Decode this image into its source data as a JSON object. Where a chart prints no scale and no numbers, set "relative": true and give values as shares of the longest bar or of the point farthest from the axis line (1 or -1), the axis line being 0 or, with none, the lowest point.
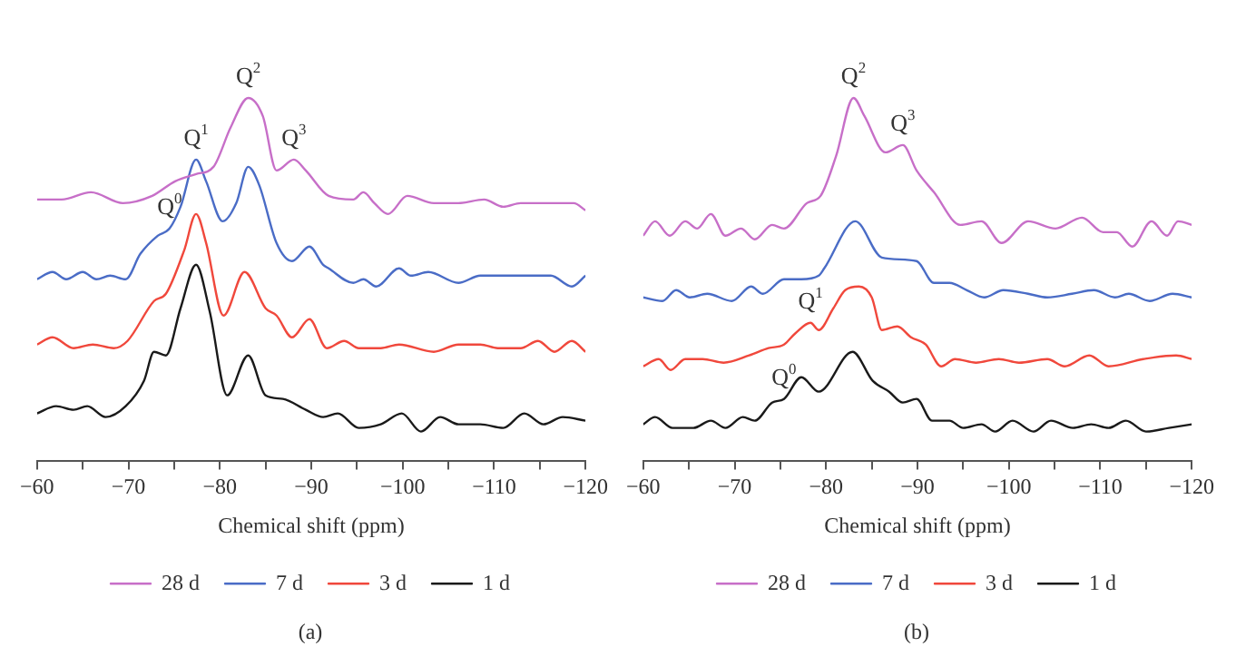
{
  "chart_data": [
    {
      "type": "line",
      "subtitle": "(a)",
      "xlabel": "Chemical shift (ppm)",
      "relative": true,
      "legend": "bottom",
      "grid": false,
      "tick_labels": "x",
      "marker": "none",
      "line_style": "solid",
      "xlim": [
        -60,
        -120
      ],
      "xticks": [
        {
          "value": -60,
          "label": "−60"
        },
        {
          "value": -65,
          "label": null
        },
        {
          "value": -70,
          "label": "−70"
        },
        {
          "value": -75,
          "label": null
        },
        {
          "value": -80,
          "label": "−80"
        },
        {
          "value": -85,
          "label": null
        },
        {
          "value": -90,
          "label": "−90"
        },
        {
          "value": -95,
          "label": null
        },
        {
          "value": -100,
          "label": "−100"
        },
        {
          "value": -105,
          "label": null
        },
        {
          "value": -110,
          "label": "−110"
        },
        {
          "value": -115,
          "label": null
        },
        {
          "value": -120,
          "label": "−120"
        }
      ],
      "annotations": [
        {
          "text": "Q$^{0}$",
          "x": -74.5,
          "y": 0.64
        },
        {
          "text": "Q$^{1}$",
          "x": -77.4,
          "y": 0.83
        },
        {
          "text": "Q$^{2}$",
          "x": -83.1,
          "y": 1.0
        },
        {
          "text": "Q$^{3}$",
          "x": -88.1,
          "y": 0.83
        }
      ],
      "series": [
        {
          "name": "28 d",
          "color": "#c76fc8",
          "x": [
            -60,
            -62.7,
            -65.9,
            -69.4,
            -72.6,
            -75.1,
            -77.4,
            -79.3,
            -81.2,
            -83.1,
            -84.7,
            -86.2,
            -88.1,
            -89.4,
            -91.9,
            -94.6,
            -95.7,
            -96.9,
            -98.4,
            -100.5,
            -103.4,
            -106.1,
            -108.9,
            -111,
            -112.9,
            -116.2,
            -118.7,
            -120
          ],
          "values": [
            0.72,
            0.72,
            0.74,
            0.71,
            0.73,
            0.77,
            0.79,
            0.81,
            0.92,
            1.0,
            0.95,
            0.8,
            0.83,
            0.8,
            0.73,
            0.72,
            0.74,
            0.71,
            0.68,
            0.73,
            0.71,
            0.71,
            0.72,
            0.7,
            0.71,
            0.71,
            0.71,
            0.69
          ]
        },
        {
          "name": "7 d",
          "color": "#4a6cc6",
          "x": [
            -60,
            -61.7,
            -63.2,
            -65,
            -66.5,
            -68,
            -69.7,
            -71.3,
            -73.2,
            -74.5,
            -75.7,
            -77.4,
            -78.5,
            -80.3,
            -81.8,
            -83.1,
            -84.3,
            -86.2,
            -87.9,
            -89.8,
            -91.3,
            -91.9,
            -94.6,
            -95.7,
            -97.1,
            -99.6,
            -100.9,
            -102.8,
            -106.1,
            -108.5,
            -110.4,
            -113.7,
            -116.2,
            -118.5,
            -120
          ],
          "values": [
            0.5,
            0.52,
            0.5,
            0.52,
            0.5,
            0.51,
            0.5,
            0.57,
            0.62,
            0.64,
            0.7,
            0.83,
            0.77,
            0.66,
            0.71,
            0.81,
            0.76,
            0.6,
            0.55,
            0.59,
            0.54,
            0.53,
            0.49,
            0.5,
            0.48,
            0.53,
            0.51,
            0.52,
            0.49,
            0.51,
            0.51,
            0.51,
            0.51,
            0.48,
            0.51
          ]
        },
        {
          "name": "3 d",
          "color": "#f0483c",
          "x": [
            -60,
            -61.7,
            -64,
            -66.1,
            -68.4,
            -69.9,
            -72.8,
            -74.1,
            -76.1,
            -77.4,
            -78.5,
            -80.4,
            -82.7,
            -85,
            -86.2,
            -87.9,
            -89.8,
            -91.7,
            -93.6,
            -95.2,
            -97.6,
            -99.6,
            -103.4,
            -106.1,
            -108.5,
            -110.4,
            -112.9,
            -114.8,
            -116.6,
            -118.5,
            -120
          ],
          "values": [
            0.32,
            0.34,
            0.31,
            0.32,
            0.31,
            0.33,
            0.44,
            0.46,
            0.58,
            0.68,
            0.6,
            0.4,
            0.52,
            0.42,
            0.4,
            0.34,
            0.39,
            0.31,
            0.33,
            0.31,
            0.31,
            0.32,
            0.3,
            0.32,
            0.32,
            0.31,
            0.31,
            0.33,
            0.3,
            0.33,
            0.3
          ]
        },
        {
          "name": "1 d",
          "color": "#1a1a1a",
          "x": [
            -60,
            -62.1,
            -64,
            -65.5,
            -67.5,
            -69.7,
            -71.7,
            -72.8,
            -74.1,
            -75.7,
            -77.4,
            -78.9,
            -80.8,
            -83.1,
            -85,
            -86.9,
            -89.4,
            -91.3,
            -92.9,
            -95.2,
            -97.6,
            -99.9,
            -102,
            -104.1,
            -106.1,
            -108.5,
            -111,
            -113.3,
            -115.4,
            -117.5,
            -120
          ],
          "values": [
            0.13,
            0.15,
            0.14,
            0.15,
            0.12,
            0.15,
            0.22,
            0.3,
            0.29,
            0.42,
            0.54,
            0.41,
            0.18,
            0.29,
            0.18,
            0.17,
            0.14,
            0.12,
            0.13,
            0.09,
            0.1,
            0.13,
            0.08,
            0.12,
            0.1,
            0.1,
            0.09,
            0.13,
            0.1,
            0.12,
            0.11
          ]
        }
      ]
    },
    {
      "type": "line",
      "subtitle": "(b)",
      "xlabel": "Chemical shift (ppm)",
      "relative": true,
      "legend": "bottom",
      "grid": false,
      "tick_labels": "x",
      "marker": "none",
      "line_style": "solid",
      "xlim": [
        -60,
        -120
      ],
      "xticks": [
        {
          "value": -60,
          "label": "−60"
        },
        {
          "value": -65,
          "label": null
        },
        {
          "value": -70,
          "label": "−70"
        },
        {
          "value": -75,
          "label": null
        },
        {
          "value": -80,
          "label": "−80"
        },
        {
          "value": -85,
          "label": null
        },
        {
          "value": -90,
          "label": "−90"
        },
        {
          "value": -95,
          "label": null
        },
        {
          "value": -100,
          "label": "−100"
        },
        {
          "value": -105,
          "label": null
        },
        {
          "value": -110,
          "label": "−110"
        },
        {
          "value": -115,
          "label": null
        },
        {
          "value": -120,
          "label": "−120"
        }
      ],
      "annotations": [
        {
          "text": "Q$^{0}$",
          "x": -75.4,
          "y": 0.17
        },
        {
          "text": "Q$^{1}$",
          "x": -78.3,
          "y": 0.38
        },
        {
          "text": "Q$^{2}$",
          "x": -83,
          "y": 1.0
        },
        {
          "text": "Q$^{3}$",
          "x": -88.4,
          "y": 0.87
        }
      ],
      "series": [
        {
          "name": "28 d",
          "color": "#c76fc8",
          "x": [
            -60,
            -61.3,
            -62.9,
            -64.6,
            -65.9,
            -67.4,
            -69,
            -70.7,
            -72.2,
            -74.1,
            -75.4,
            -77.9,
            -79.4,
            -81.1,
            -83,
            -84.2,
            -86.5,
            -88.4,
            -89.9,
            -91.8,
            -94.7,
            -97,
            -99.2,
            -102.1,
            -105.1,
            -108,
            -110.3,
            -111.8,
            -113.5,
            -115.6,
            -117.3,
            -118.5,
            -120
          ],
          "values": [
            0.62,
            0.66,
            0.62,
            0.66,
            0.64,
            0.68,
            0.62,
            0.64,
            0.61,
            0.65,
            0.64,
            0.71,
            0.73,
            0.84,
            1.0,
            0.95,
            0.85,
            0.87,
            0.8,
            0.74,
            0.65,
            0.66,
            0.6,
            0.66,
            0.64,
            0.67,
            0.63,
            0.63,
            0.59,
            0.66,
            0.62,
            0.66,
            0.65
          ]
        },
        {
          "name": "7 d",
          "color": "#4a6cc6",
          "x": [
            -60,
            -62.1,
            -63.6,
            -65.1,
            -67,
            -69.7,
            -71.8,
            -73.1,
            -75.4,
            -77.3,
            -79.2,
            -79.8,
            -83.2,
            -86.1,
            -89.9,
            -91.8,
            -93.5,
            -95.4,
            -97.3,
            -99.4,
            -102.1,
            -104.2,
            -106.9,
            -109.3,
            -111.6,
            -113.1,
            -115.4,
            -117.9,
            -120
          ],
          "values": [
            0.45,
            0.44,
            0.47,
            0.45,
            0.46,
            0.44,
            0.48,
            0.46,
            0.5,
            0.5,
            0.51,
            0.53,
            0.66,
            0.56,
            0.55,
            0.49,
            0.49,
            0.47,
            0.45,
            0.47,
            0.46,
            0.45,
            0.46,
            0.47,
            0.45,
            0.46,
            0.44,
            0.46,
            0.45
          ]
        },
        {
          "name": "3 d",
          "color": "#f0483c",
          "x": [
            -60,
            -61.7,
            -63,
            -64.6,
            -66.5,
            -68.8,
            -71.6,
            -73.7,
            -75.4,
            -76.6,
            -78.3,
            -79.2,
            -80.8,
            -82.1,
            -83.6,
            -85,
            -86.1,
            -87.8,
            -89.3,
            -90.9,
            -92.6,
            -94.1,
            -96.4,
            -98.9,
            -101.1,
            -104.2,
            -106.1,
            -108.8,
            -110.9,
            -114.7,
            -118.3,
            -120
          ],
          "values": [
            0.26,
            0.28,
            0.25,
            0.28,
            0.28,
            0.27,
            0.29,
            0.31,
            0.32,
            0.35,
            0.38,
            0.36,
            0.42,
            0.47,
            0.48,
            0.45,
            0.36,
            0.37,
            0.34,
            0.32,
            0.26,
            0.28,
            0.27,
            0.28,
            0.27,
            0.28,
            0.26,
            0.29,
            0.26,
            0.28,
            0.29,
            0.28
          ]
        },
        {
          "name": "1 d",
          "color": "#1a1a1a",
          "x": [
            -60,
            -61.3,
            -63.2,
            -65.5,
            -67.4,
            -69,
            -70.9,
            -72.2,
            -74.1,
            -75.4,
            -77.3,
            -79.2,
            -82.9,
            -85.1,
            -86.9,
            -88.4,
            -89.9,
            -91.6,
            -93.5,
            -95,
            -97,
            -98.5,
            -100.4,
            -102.7,
            -104.6,
            -107,
            -109,
            -110.9,
            -112.8,
            -115,
            -117.5,
            -120
          ],
          "values": [
            0.1,
            0.12,
            0.09,
            0.09,
            0.11,
            0.09,
            0.12,
            0.11,
            0.16,
            0.17,
            0.23,
            0.19,
            0.3,
            0.22,
            0.19,
            0.16,
            0.17,
            0.11,
            0.11,
            0.09,
            0.1,
            0.08,
            0.11,
            0.08,
            0.11,
            0.09,
            0.1,
            0.09,
            0.11,
            0.08,
            0.09,
            0.1
          ]
        }
      ]
    }
  ]
}
